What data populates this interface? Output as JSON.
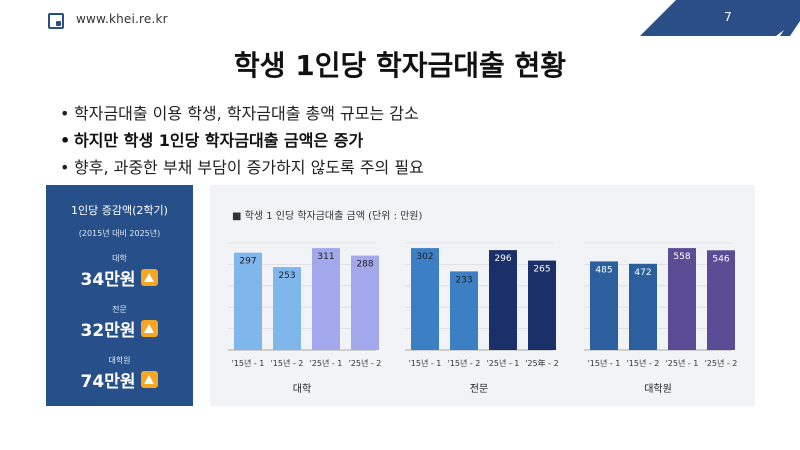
{
  "header": {
    "site": "www.khei.re.kr",
    "page_number": "7"
  },
  "title": "학생 1인당 학자금대출 현황",
  "bullets": [
    "학자금대출 이용 학생, 학자금대출 총액 규모는 감소",
    "하지만 학생 1인당 학자금대출 금액은 증가",
    "향후, 과중한 부채 부담이 증가하지 않도록 주의 필요"
  ],
  "side_panel": {
    "title": "1인당 증감액(2학기)",
    "subtitle": "(2015년 대비 2025년)",
    "stats": [
      {
        "label": "대학",
        "value": "34만원",
        "icon": "up-arrow-icon"
      },
      {
        "label": "전문",
        "value": "32만원",
        "icon": "up-arrow-icon"
      },
      {
        "label": "대학원",
        "value": "74만원",
        "icon": "up-arrow-icon"
      }
    ],
    "colors": {
      "background": "#27508a",
      "icon": "#f5a623"
    }
  },
  "chart_data": {
    "type": "bar",
    "title": "■ 학생  1 인당  학자금대출 금액 (단위 : 만원)",
    "groups": [
      {
        "name": "대학",
        "categories": [
          "'15년 - 1",
          "'15년 - 2",
          "'25년 - 1",
          "'25년 - 2"
        ],
        "values": [
          297,
          253,
          311,
          288
        ],
        "colors": [
          "#7fb6ec",
          "#7fb6ec",
          "#a3a8ec",
          "#a3a8ec"
        ]
      },
      {
        "name": "전문",
        "categories": [
          "'15년 - 1",
          "'15년 - 2",
          "'25년 - 1",
          "'25年 - 2"
        ],
        "values": [
          302,
          233,
          296,
          265
        ],
        "colors": [
          "#3d7fc4",
          "#3d7fc4",
          "#1b2f68",
          "#1b2f68"
        ]
      },
      {
        "name": "대학원",
        "categories": [
          "'15년 - 1",
          "'15년 - 2",
          "'25년 - 1",
          "'25년 - 2"
        ],
        "values": [
          485,
          472,
          558,
          546
        ],
        "colors": [
          "#2c5f9e",
          "#2c5f9e",
          "#5a4d96",
          "#5a4d96"
        ]
      }
    ],
    "grid": true
  }
}
